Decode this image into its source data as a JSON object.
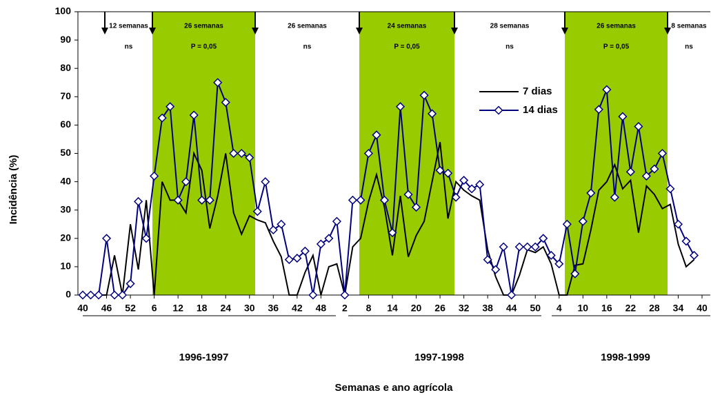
{
  "chart_data": {
    "type": "line",
    "ylabel": "Incidência (%)",
    "xlabel": "Semanas e ano agrícola",
    "categories": [
      "40",
      null,
      null,
      "46",
      null,
      null,
      "52",
      null,
      null,
      "6",
      null,
      null,
      "12",
      null,
      null,
      "18",
      null,
      null,
      "24",
      null,
      null,
      "30",
      null,
      null,
      "36",
      null,
      null,
      "42",
      null,
      null,
      "48",
      null,
      null,
      "2",
      null,
      null,
      "8",
      null,
      null,
      "14",
      null,
      null,
      "20",
      null,
      null,
      "26",
      null,
      null,
      "32",
      null,
      null,
      "38",
      null,
      null,
      "44",
      null,
      null,
      "50",
      null,
      null,
      "4",
      null,
      null,
      "10",
      null,
      null,
      "16",
      null,
      null,
      "22",
      null,
      null,
      "28",
      null,
      null,
      "34",
      null,
      null,
      "40"
    ],
    "series": [
      {
        "name": "7 dias",
        "color": "#000000",
        "marker": false,
        "values": [
          0,
          0,
          0,
          0,
          14,
          0,
          25,
          9,
          33.5,
          0,
          40,
          33.5,
          33.5,
          29,
          50,
          44,
          23.5,
          35,
          50,
          29,
          21.5,
          28,
          26.5,
          25.5,
          19,
          13.5,
          0,
          0,
          8,
          14,
          0,
          10,
          11,
          0,
          17,
          20,
          33,
          42.5,
          31,
          14,
          35,
          13.5,
          21,
          26,
          40,
          54,
          27,
          40,
          37,
          35,
          33.5,
          16,
          6.5,
          0,
          0,
          7,
          16,
          15,
          17,
          11,
          0,
          0,
          10.5,
          11,
          23,
          37,
          40,
          46,
          37.5,
          40.5,
          22,
          38.5,
          35.5,
          30.5,
          32,
          18,
          10,
          12.5,
          null
        ]
      },
      {
        "name": "14 dias",
        "color": "#000080",
        "marker": true,
        "values": [
          0,
          0,
          0,
          20,
          0,
          0,
          4,
          33,
          20,
          42,
          62.5,
          66.5,
          33.5,
          40,
          63.5,
          33.5,
          33.5,
          75,
          68,
          50,
          50,
          48.5,
          29.5,
          40,
          23,
          25,
          12.5,
          13,
          15.5,
          0,
          18,
          20,
          26,
          0,
          33.5,
          33.5,
          50,
          56.5,
          33.5,
          22,
          66.5,
          35.5,
          31,
          70.5,
          64,
          44,
          43,
          34.5,
          40.5,
          37.5,
          39,
          12.5,
          9,
          17,
          0,
          17,
          17,
          17,
          20,
          14,
          11,
          25,
          7.5,
          26,
          36,
          65.5,
          72.5,
          34.5,
          63,
          43.5,
          59.5,
          42,
          44.5,
          50,
          37.5,
          25,
          19,
          14,
          null
        ]
      }
    ],
    "ylim": [
      0,
      100
    ],
    "yticks": [
      0,
      10,
      20,
      30,
      40,
      50,
      60,
      70,
      80,
      90,
      100
    ],
    "periods": [
      {
        "label": "12 semanas",
        "test": "ns",
        "shaded": false
      },
      {
        "label": "26 semanas",
        "test": "P = 0,05",
        "shaded": true
      },
      {
        "label": "26 semanas",
        "test": "ns",
        "shaded": false
      },
      {
        "label": "24 semanas",
        "test": "P = 0,05",
        "shaded": true
      },
      {
        "label": "28 semanas",
        "test": "ns",
        "shaded": false
      },
      {
        "label": "26 semanas",
        "test": "P = 0,05",
        "shaded": true
      },
      {
        "label": "8 semanas",
        "test": "ns",
        "shaded": false
      }
    ],
    "shade_color": "#99cc00",
    "seasons": [
      "1996-1997",
      "1997-1998",
      "1998-1999"
    ]
  }
}
